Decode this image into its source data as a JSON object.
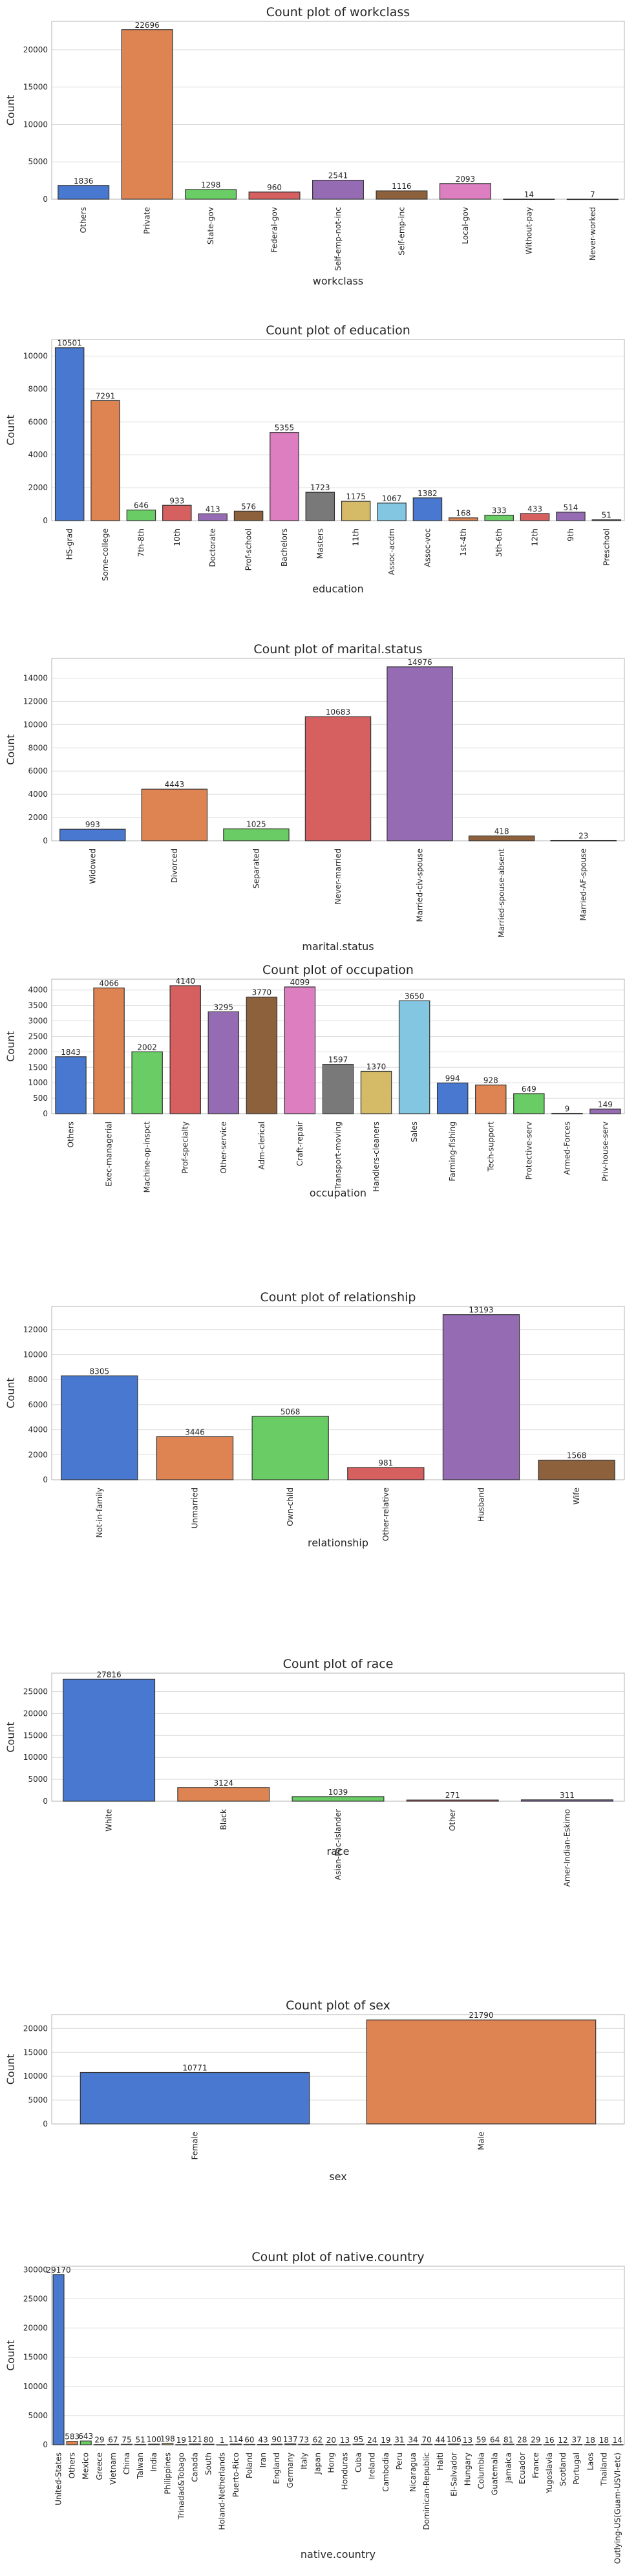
{
  "palette": [
    "#4878cf",
    "#dd8452",
    "#6acc64",
    "#d65f5f",
    "#956cb4",
    "#8c613c",
    "#dc7ec0",
    "#797979",
    "#d5bb67",
    "#82c6e2"
  ],
  "chart_data": [
    {
      "type": "bar",
      "title": "Count plot of workclass",
      "xlabel": "workclass",
      "ylabel": "Count",
      "categories": [
        "Others",
        "Private",
        "State-gov",
        "Federal-gov",
        "Self-emp-not-inc",
        "Self-emp-inc",
        "Local-gov",
        "Without-pay",
        "Never-worked"
      ],
      "values": [
        1836,
        22696,
        1298,
        960,
        2541,
        1116,
        2093,
        14,
        7
      ],
      "labels": [
        "1836",
        "22696",
        "1298",
        "960",
        "2541",
        "1116",
        "2093",
        "14",
        "7"
      ],
      "yticks": [
        0,
        5000,
        10000,
        15000,
        20000
      ],
      "ylim": [
        0,
        23800
      ]
    },
    {
      "type": "bar",
      "title": "Count plot of education",
      "xlabel": "education",
      "ylabel": "Count",
      "categories": [
        "HS-grad",
        "Some-college",
        "7th-8th",
        "10th",
        "Doctorate",
        "Prof-school",
        "Bachelors",
        "Masters",
        "11th",
        "Assoc-acdm",
        "Assoc-voc",
        "1st-4th",
        "5th-6th",
        "12th",
        "9th",
        "Preschool"
      ],
      "values": [
        10501,
        7291,
        646,
        933,
        413,
        576,
        5355,
        1723,
        1175,
        1067,
        1382,
        168,
        333,
        433,
        514,
        51
      ],
      "labels": [
        "10501",
        "7291",
        "646",
        "933",
        "413",
        "576",
        "5355",
        "1723",
        "1175",
        "1067",
        "1382",
        "168",
        "333",
        "433",
        "514",
        "51"
      ],
      "yticks": [
        0,
        2000,
        4000,
        6000,
        8000,
        10000
      ],
      "ylim": [
        0,
        11000
      ]
    },
    {
      "type": "bar",
      "title": "Count plot of marital.status",
      "xlabel": "marital.status",
      "ylabel": "Count",
      "categories": [
        "Widowed",
        "Divorced",
        "Separated",
        "Never-married",
        "Married-civ-spouse",
        "Married-spouse-absent",
        "Married-AF-spouse"
      ],
      "values": [
        993,
        4443,
        1025,
        10683,
        14976,
        418,
        23
      ],
      "labels": [
        "993",
        "4443",
        "1025",
        "10683",
        "14976",
        "418",
        "23"
      ],
      "yticks": [
        0,
        2000,
        4000,
        6000,
        8000,
        10000,
        12000,
        14000
      ],
      "ylim": [
        0,
        15700
      ]
    },
    {
      "type": "bar",
      "title": "Count plot of occupation",
      "xlabel": "occupation",
      "ylabel": "Count",
      "categories": [
        "Others",
        "Exec-managerial",
        "Machine-op-inspct",
        "Prof-specialty",
        "Other-service",
        "Adm-clerical",
        "Craft-repair",
        "Transport-moving",
        "Handlers-cleaners",
        "Sales",
        "Farming-fishing",
        "Tech-support",
        "Protective-serv",
        "Armed-Forces",
        "Priv-house-serv"
      ],
      "values": [
        1843,
        4066,
        2002,
        4140,
        3295,
        3770,
        4099,
        1597,
        1370,
        3650,
        994,
        928,
        649,
        9,
        149
      ],
      "labels": [
        "1843",
        "4066",
        "2002",
        "4140",
        "3295",
        "3770",
        "4099",
        "1597",
        "1370",
        "3650",
        "994",
        "928",
        "649",
        "9",
        "149"
      ],
      "yticks": [
        0,
        500,
        1000,
        1500,
        2000,
        2500,
        3000,
        3500,
        4000
      ],
      "ylim": [
        0,
        4350
      ]
    },
    {
      "type": "bar",
      "title": "Count plot of relationship",
      "xlabel": "relationship",
      "ylabel": "Count",
      "categories": [
        "Not-in-family",
        "Unmarried",
        "Own-child",
        "Other-relative",
        "Husband",
        "Wife"
      ],
      "values": [
        8305,
        3446,
        5068,
        981,
        13193,
        1568
      ],
      "labels": [
        "8305",
        "3446",
        "5068",
        "981",
        "13193",
        "1568"
      ],
      "yticks": [
        0,
        2000,
        4000,
        6000,
        8000,
        10000,
        12000
      ],
      "ylim": [
        0,
        13850
      ]
    },
    {
      "type": "bar",
      "title": "Count plot of race",
      "xlabel": "race",
      "ylabel": "Count",
      "categories": [
        "White",
        "Black",
        "Asian-Pac-Islander",
        "Other",
        "Amer-Indian-Eskimo"
      ],
      "values": [
        27816,
        3124,
        1039,
        271,
        311
      ],
      "labels": [
        "27816",
        "3124",
        "1039",
        "271",
        "311"
      ],
      "yticks": [
        0,
        5000,
        10000,
        15000,
        20000,
        25000
      ],
      "ylim": [
        0,
        29200
      ]
    },
    {
      "type": "bar",
      "title": "Count plot of sex",
      "xlabel": "sex",
      "ylabel": "Count",
      "categories": [
        "Female",
        "Male"
      ],
      "values": [
        10771,
        21790
      ],
      "labels": [
        "10771",
        "21790"
      ],
      "yticks": [
        0,
        5000,
        10000,
        15000,
        20000
      ],
      "ylim": [
        0,
        22900
      ]
    },
    {
      "type": "bar",
      "title": "Count plot of native.country",
      "xlabel": "native.country",
      "ylabel": "Count",
      "categories": [
        "United-States",
        "Others",
        "Mexico",
        "Greece",
        "Vietnam",
        "China",
        "Taiwan",
        "India",
        "Philippines",
        "Trinadad&Tobago",
        "Canada",
        "South",
        "Holand-Netherlands",
        "Puerto-Rico",
        "Poland",
        "Iran",
        "England",
        "Germany",
        "Italy",
        "Japan",
        "Hong",
        "Honduras",
        "Cuba",
        "Ireland",
        "Cambodia",
        "Peru",
        "Nicaragua",
        "Dominican-Republic",
        "Haiti",
        "El-Salvador",
        "Hungary",
        "Columbia",
        "Guatemala",
        "Jamaica",
        "Ecuador",
        "France",
        "Yugoslavia",
        "Scotland",
        "Portugal",
        "Laos",
        "Thailand",
        "Outlying-US(Guam-USVI-etc)"
      ],
      "values": [
        29170,
        583,
        643,
        29,
        67,
        75,
        51,
        100,
        198,
        19,
        121,
        80,
        1,
        114,
        60,
        43,
        90,
        137,
        73,
        62,
        20,
        13,
        95,
        24,
        19,
        31,
        34,
        70,
        44,
        106,
        13,
        59,
        64,
        81,
        28,
        29,
        16,
        12,
        37,
        18,
        18,
        14
      ],
      "labels": [
        "29170",
        "583",
        "643",
        "29",
        "67",
        "75",
        "51",
        "100",
        "198",
        "19",
        "121",
        "80",
        "1",
        "114",
        "60",
        "43",
        "90",
        "137",
        "73",
        "62",
        "20",
        "13",
        "95",
        "24",
        "19",
        "31",
        "34",
        "70",
        "44",
        "106",
        "13",
        "59",
        "64",
        "81",
        "28",
        "29",
        "16",
        "12",
        "37",
        "18",
        "18",
        "14"
      ],
      "yticks": [
        0,
        5000,
        10000,
        15000,
        20000,
        25000,
        30000
      ],
      "ylim": [
        0,
        30600
      ]
    }
  ]
}
